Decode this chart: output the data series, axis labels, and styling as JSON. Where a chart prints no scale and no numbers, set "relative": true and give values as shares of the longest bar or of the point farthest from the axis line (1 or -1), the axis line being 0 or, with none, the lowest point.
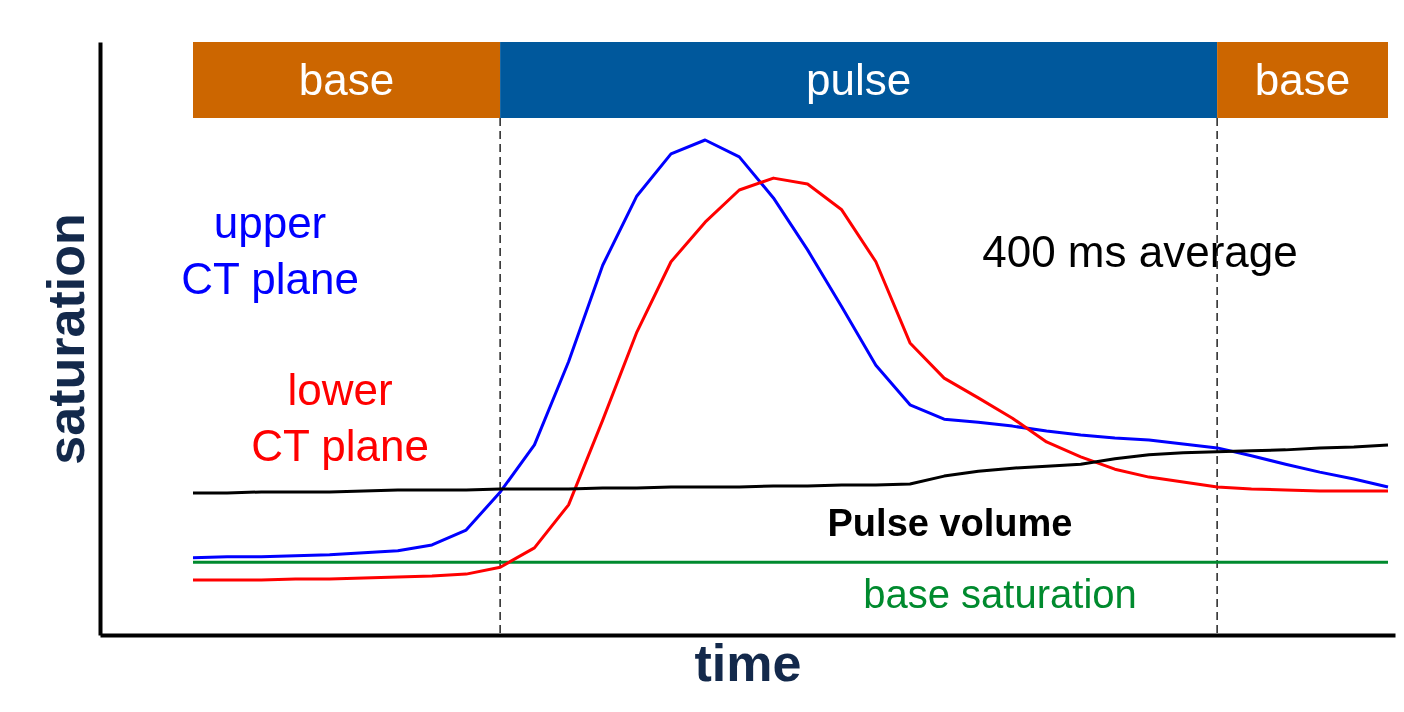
{
  "chart_data": {
    "type": "line",
    "relative": true,
    "xlabel": "time",
    "ylabel": "saturation",
    "line_style": "solid",
    "categories": [
      null,
      null,
      null,
      null,
      null,
      null,
      null,
      null,
      null,
      null,
      null,
      null,
      null,
      null,
      null,
      null,
      null,
      null,
      null,
      null,
      null,
      null,
      null,
      null,
      null,
      null,
      null,
      null,
      null,
      null,
      null,
      null,
      null,
      null,
      null,
      null
    ],
    "series": [
      {
        "name": "upper CT plane",
        "color": "#0000ff",
        "values": [
          0.156,
          0.158,
          0.158,
          0.16,
          0.162,
          0.166,
          0.17,
          0.182,
          0.212,
          0.289,
          0.384,
          0.552,
          0.747,
          0.887,
          0.972,
          1.0,
          0.966,
          0.883,
          0.778,
          0.663,
          0.545,
          0.465,
          0.436,
          0.43,
          0.422,
          0.412,
          0.404,
          0.398,
          0.394,
          0.386,
          0.378,
          0.362,
          0.345,
          0.329,
          0.315,
          0.299
        ]
      },
      {
        "name": "lower CT plane",
        "color": "#ff0000",
        "values": [
          0.111,
          0.111,
          0.111,
          0.113,
          0.113,
          0.115,
          0.117,
          0.119,
          0.123,
          0.137,
          0.176,
          0.263,
          0.434,
          0.612,
          0.754,
          0.834,
          0.899,
          0.923,
          0.911,
          0.859,
          0.754,
          0.59,
          0.519,
          0.479,
          0.438,
          0.39,
          0.36,
          0.335,
          0.319,
          0.309,
          0.299,
          0.295,
          0.293,
          0.291,
          0.291,
          0.291
        ]
      },
      {
        "name": "400 ms average",
        "color": "#000000",
        "values": [
          0.287,
          0.287,
          0.289,
          0.289,
          0.289,
          0.291,
          0.293,
          0.293,
          0.293,
          0.295,
          0.295,
          0.295,
          0.297,
          0.297,
          0.299,
          0.299,
          0.299,
          0.301,
          0.301,
          0.303,
          0.303,
          0.305,
          0.321,
          0.331,
          0.337,
          0.341,
          0.345,
          0.356,
          0.364,
          0.368,
          0.37,
          0.372,
          0.374,
          0.378,
          0.38,
          0.384
        ]
      }
    ],
    "ref_lines": [
      {
        "axis": "y",
        "value": 0.147,
        "label": "base saturation",
        "color": "#008a2e",
        "line_style": "solid"
      }
    ],
    "annotations": [
      "base",
      "pulse",
      "base",
      "Pulse volume"
    ]
  }
}
